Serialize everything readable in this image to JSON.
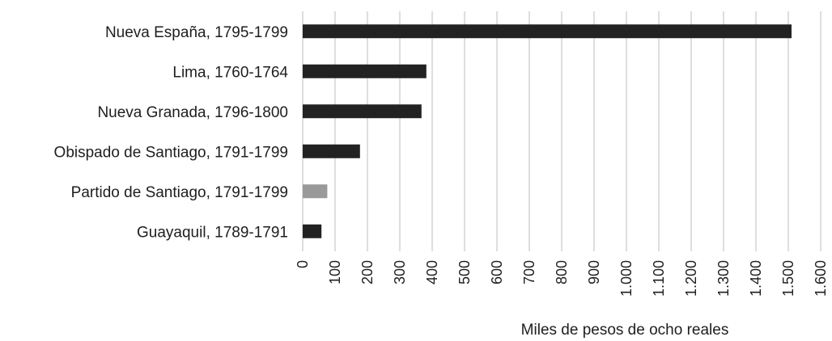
{
  "chart_data": {
    "type": "bar",
    "orientation": "horizontal",
    "title": "",
    "xlabel": "Miles de pesos de ocho reales",
    "ylabel": "",
    "xlim": [
      0,
      1600
    ],
    "x_ticks": [
      "0",
      "100",
      "200",
      "300",
      "400",
      "500",
      "600",
      "700",
      "800",
      "900",
      "1.000",
      "1.100",
      "1.200",
      "1.300",
      "1.400",
      "1.500",
      "1.600"
    ],
    "grid": "vertical",
    "legend": "none",
    "categories": [
      "Nueva España, 1795-1799",
      "Lima, 1760-1764",
      "Nueva Granada, 1796-1800",
      "Obispado de Santiago, 1791-1799",
      "Partido de Santiago, 1791-1799",
      "Guayaquil, 1789-1791"
    ],
    "values": [
      1510,
      382,
      367,
      177,
      76,
      58
    ],
    "bar_colors": [
      "#222222",
      "#222222",
      "#222222",
      "#222222",
      "#999999",
      "#222222"
    ]
  }
}
